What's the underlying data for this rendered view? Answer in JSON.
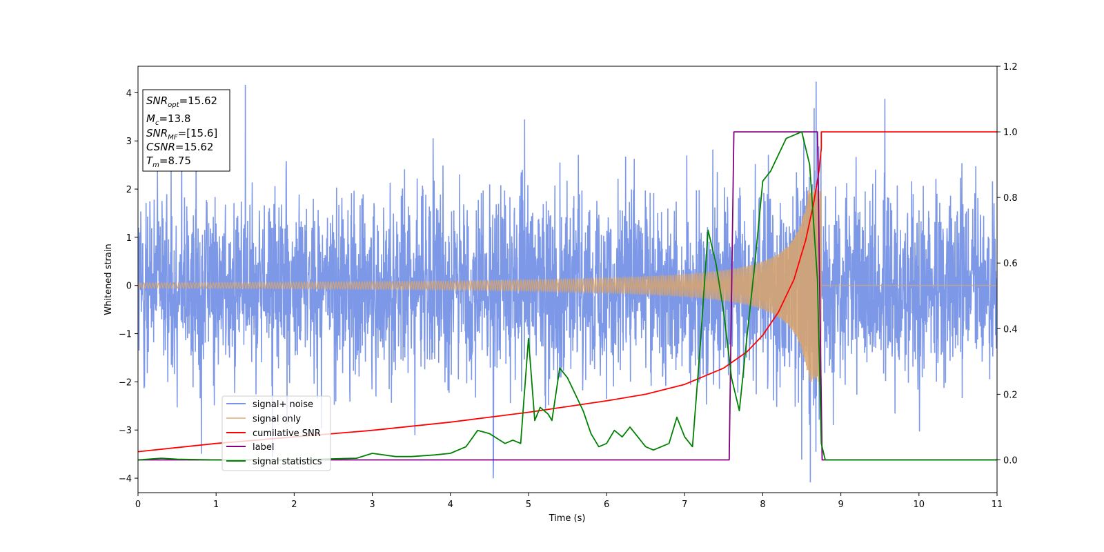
{
  "chart_data": {
    "type": "line",
    "xlabel": "Time (s)",
    "ylabel": "Whitened strain",
    "xlim": [
      0,
      11
    ],
    "ylim": [
      -4.3,
      4.55
    ],
    "y2lim": [
      -0.1,
      1.2
    ],
    "xticks": [
      0,
      1,
      2,
      3,
      4,
      5,
      6,
      7,
      8,
      9,
      10,
      11
    ],
    "yticks": [
      -4,
      -3,
      -2,
      -1,
      0,
      1,
      2,
      3,
      4
    ],
    "y2ticks": [
      0.0,
      0.2,
      0.4,
      0.6,
      0.8,
      1.0,
      1.2
    ],
    "legend_position": "lower-left",
    "grid": false,
    "annotation": {
      "snr_opt": {
        "main": "SNR",
        "sub": "opt",
        "value": "=15.62"
      },
      "mc": {
        "main": "M",
        "sub": "c",
        "value": "=13.8"
      },
      "snr_mf": {
        "main": "SNR",
        "sub": "MF",
        "value": "=[15.6]"
      },
      "csnr": {
        "main": "CSNR",
        "sub": "",
        "value": "=15.62"
      },
      "tm": {
        "main": "T",
        "sub": "m",
        "value": "=8.75"
      }
    },
    "series": [
      {
        "name": "signal+ noise",
        "axis": "left",
        "color": "#7792e7",
        "noise_std": 0.95,
        "amplitude_range": [
          -3.9,
          4.2
        ]
      },
      {
        "name": "signal only",
        "axis": "left",
        "color": "#d9a56a",
        "chirp_start_amplitude": 0.03,
        "chirp_peak_amplitude": 2.0,
        "chirp_end_time": 8.75
      },
      {
        "name": "cumilative SNR",
        "axis": "right",
        "color": "#ff0000",
        "x": [
          0,
          1,
          2,
          3,
          4,
          5,
          6,
          6.5,
          7,
          7.5,
          7.8,
          8.0,
          8.2,
          8.4,
          8.55,
          8.65,
          8.72,
          8.75,
          8.75,
          11
        ],
        "y": [
          0.025,
          0.05,
          0.07,
          0.09,
          0.115,
          0.145,
          0.18,
          0.2,
          0.23,
          0.28,
          0.33,
          0.38,
          0.45,
          0.55,
          0.67,
          0.78,
          0.88,
          0.95,
          1.0,
          1.0
        ]
      },
      {
        "name": "label",
        "axis": "right",
        "color": "#800080",
        "x": [
          0,
          7.57,
          7.63,
          8.7,
          8.76,
          11
        ],
        "y": [
          0,
          0,
          1,
          1,
          0,
          0
        ]
      },
      {
        "name": "signal statistics",
        "axis": "right",
        "color": "#008000",
        "x": [
          0,
          0.3,
          0.5,
          1,
          2,
          2.8,
          3,
          3.3,
          3.5,
          3.8,
          4,
          4.2,
          4.35,
          4.5,
          4.7,
          4.8,
          4.9,
          5.0,
          5.08,
          5.15,
          5.25,
          5.3,
          5.4,
          5.5,
          5.6,
          5.7,
          5.8,
          5.9,
          6.0,
          6.1,
          6.2,
          6.3,
          6.4,
          6.5,
          6.6,
          6.7,
          6.8,
          6.9,
          7.0,
          7.1,
          7.2,
          7.3,
          7.4,
          7.5,
          7.6,
          7.7,
          7.8,
          7.9,
          8.0,
          8.1,
          8.2,
          8.3,
          8.4,
          8.5,
          8.6,
          8.7,
          8.75,
          8.8,
          9,
          11
        ],
        "y": [
          0,
          0.005,
          0.002,
          0,
          0,
          0.005,
          0.02,
          0.01,
          0.01,
          0.015,
          0.02,
          0.04,
          0.09,
          0.08,
          0.05,
          0.06,
          0.05,
          0.37,
          0.12,
          0.16,
          0.14,
          0.12,
          0.28,
          0.25,
          0.2,
          0.15,
          0.08,
          0.04,
          0.05,
          0.09,
          0.07,
          0.1,
          0.07,
          0.04,
          0.03,
          0.04,
          0.05,
          0.13,
          0.07,
          0.04,
          0.35,
          0.7,
          0.6,
          0.45,
          0.25,
          0.15,
          0.38,
          0.6,
          0.85,
          0.88,
          0.93,
          0.98,
          0.99,
          1.0,
          0.9,
          0.55,
          0.05,
          0,
          0,
          0
        ]
      }
    ]
  }
}
